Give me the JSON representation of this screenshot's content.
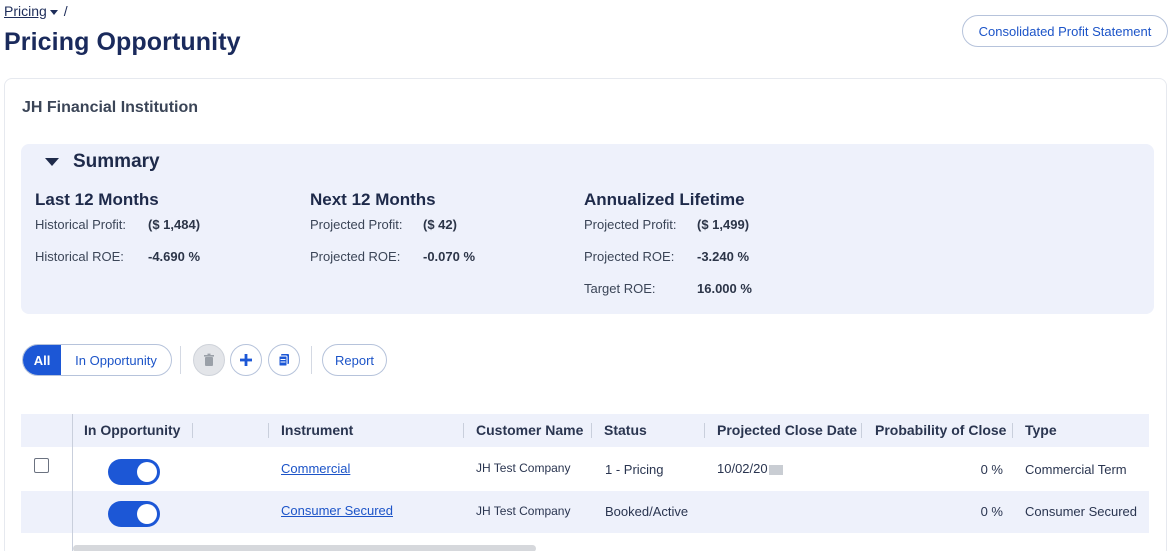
{
  "breadcrumb": {
    "root": "Pricing",
    "separator": "/"
  },
  "page": {
    "title": "Pricing Opportunity",
    "consolidated_button": "Consolidated Profit Statement"
  },
  "institution": {
    "name": "JH Financial Institution"
  },
  "summary": {
    "title": "Summary",
    "last12": {
      "heading": "Last 12 Months",
      "rows": [
        {
          "label": "Historical Profit:",
          "value": "($ 1,484)"
        },
        {
          "label": "Historical ROE:",
          "value": "-4.690 %"
        }
      ]
    },
    "next12": {
      "heading": "Next 12 Months",
      "rows": [
        {
          "label": "Projected Profit:",
          "value": "($ 42)"
        },
        {
          "label": "Projected ROE:",
          "value": "-0.070 %"
        }
      ]
    },
    "lifetime": {
      "heading": "Annualized Lifetime",
      "rows": [
        {
          "label": "Projected Profit:",
          "value": "($ 1,499)"
        },
        {
          "label": "Projected ROE:",
          "value": "-3.240 %"
        },
        {
          "label": "Target ROE:",
          "value": "16.000 %"
        }
      ]
    }
  },
  "toolbar": {
    "filter_all": "All",
    "filter_in_opportunity": "In Opportunity",
    "delete_icon": "trash-icon",
    "add_icon": "plus-icon",
    "copy_icon": "clipboard-icon",
    "report": "Report"
  },
  "table": {
    "columns": [
      "In Opportunity",
      "Instrument",
      "Customer Name",
      "Status",
      "Projected Close Date",
      "Probability of Close",
      "Type"
    ],
    "rows": [
      {
        "in_opportunity": true,
        "instrument": "Commercial",
        "customer": "JH Test Company",
        "status": "1 - Pricing",
        "close_date": "10/02/20",
        "probability": "0 %",
        "type": "Commercial Term"
      },
      {
        "in_opportunity": true,
        "instrument": "Consumer Secured",
        "customer": "JH Test Company",
        "status": "Booked/Active",
        "close_date": "",
        "probability": "0 %",
        "type": "Consumer Secured"
      }
    ]
  },
  "colors": {
    "accent": "#1c57d6",
    "summary_bg": "#eef1fb",
    "title": "#1a2a5c"
  }
}
